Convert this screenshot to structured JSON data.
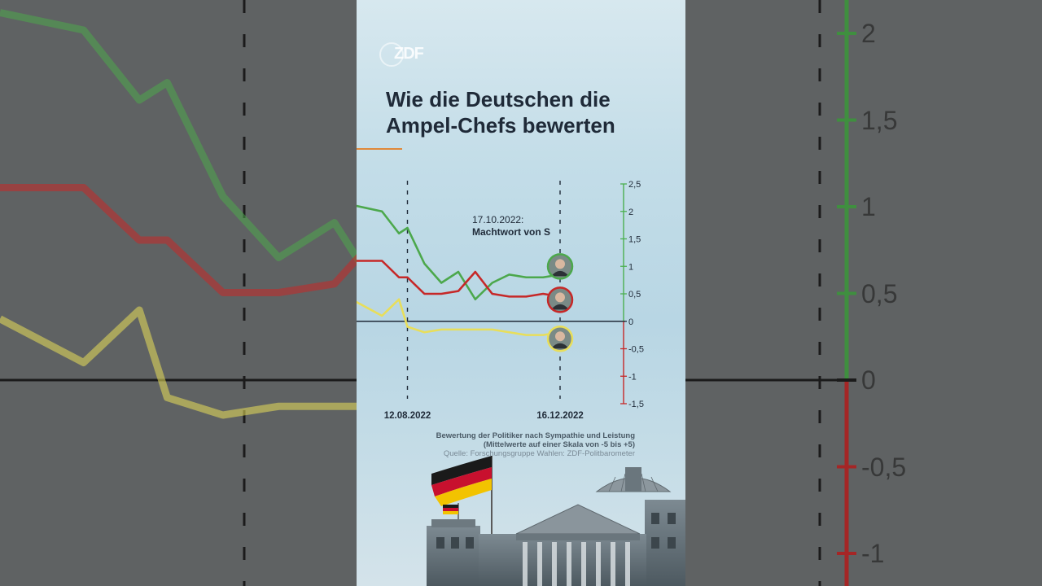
{
  "title_line1": "Wie die Deutschen die",
  "title_line2": "Ampel-Chefs bewerten",
  "logo": "ZDF",
  "annotation": {
    "date": "17.10.2022:",
    "text": "Machtwort von S"
  },
  "footer": {
    "line1": "Bewertung der Politiker nach Sympathie und Leistung",
    "line2": "(Mittelwerte auf einer Skala von -5 bis +5)",
    "source": "Quelle: Forschungsgruppe Wahlen: ZDF-Politbarometer"
  },
  "background_ticks_right": [
    "2",
    "1,5",
    "1",
    "0,5",
    "0",
    "-0,5",
    "-1"
  ],
  "colors": {
    "green": "#4ca84c",
    "red": "#c62828",
    "yellow": "#e8de5a",
    "accent": "#e0883a",
    "axis_positive": "#4caf50",
    "axis_negative": "#c62828"
  },
  "chart_data": {
    "type": "line",
    "x": [
      "2022-07-01",
      "2022-07-22",
      "2022-08-05",
      "2022-08-12",
      "2022-08-26",
      "2022-09-09",
      "2022-09-23",
      "2022-10-07",
      "2022-10-21",
      "2022-11-04",
      "2022-11-18",
      "2022-12-02",
      "2022-12-16"
    ],
    "x_tick_labels": [
      "12.08.2022",
      "16.12.2022"
    ],
    "x_tick_positions": [
      "2022-08-12",
      "2022-12-16"
    ],
    "y_ticks": [
      "2,5",
      "2",
      "1,5",
      "1",
      "0,5",
      "0",
      "-0,5",
      "-1",
      "-1,5"
    ],
    "ylim": [
      -1.5,
      2.5
    ],
    "series": [
      {
        "color": "green",
        "values": [
          2.1,
          2.0,
          1.6,
          1.7,
          1.05,
          0.7,
          0.9,
          0.4,
          0.7,
          0.85,
          0.8,
          0.8,
          0.85
        ]
      },
      {
        "color": "red",
        "values": [
          1.1,
          1.1,
          0.8,
          0.8,
          0.5,
          0.5,
          0.55,
          0.9,
          0.5,
          0.45,
          0.45,
          0.5,
          0.45
        ]
      },
      {
        "color": "yellow",
        "values": [
          0.35,
          0.1,
          0.4,
          -0.1,
          -0.2,
          -0.15,
          -0.15,
          -0.15,
          -0.15,
          -0.2,
          -0.25,
          -0.25,
          -0.2
        ]
      }
    ],
    "vlines_at": [
      "2022-08-12",
      "2022-12-16"
    ],
    "grid": false,
    "legend": "none"
  }
}
